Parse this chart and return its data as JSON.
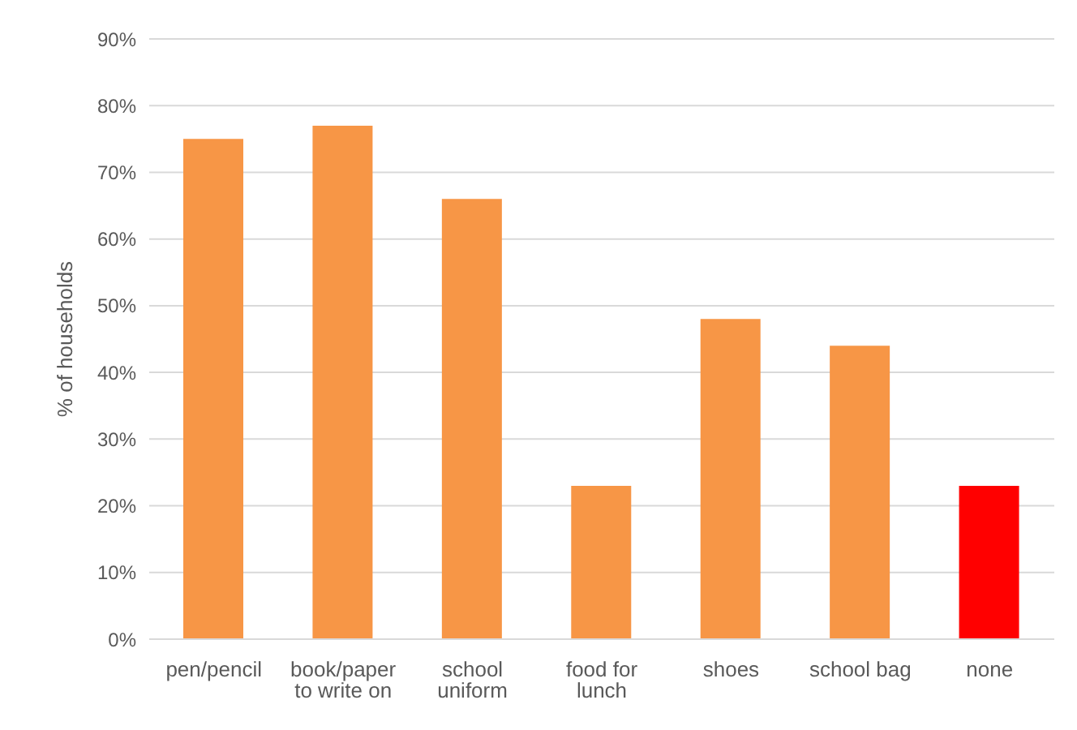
{
  "chart_data": {
    "type": "bar",
    "ylabel": "% of households",
    "categories": [
      "pen/pencil",
      "book/paper to write on",
      "school uniform",
      "food for lunch",
      "shoes",
      "school bag",
      "none"
    ],
    "values": [
      75,
      77,
      66,
      23,
      48,
      44,
      23
    ],
    "colors": [
      "#f79646",
      "#f79646",
      "#f79646",
      "#f79646",
      "#f79646",
      "#f79646",
      "#ff0000"
    ],
    "ylim": [
      0,
      90
    ],
    "yticks": [
      {
        "value": 0,
        "label": "0%"
      },
      {
        "value": 10,
        "label": "10%"
      },
      {
        "value": 20,
        "label": "20%"
      },
      {
        "value": 30,
        "label": "30%"
      },
      {
        "value": 40,
        "label": "40%"
      },
      {
        "value": 50,
        "label": "50%"
      },
      {
        "value": 60,
        "label": "60%"
      },
      {
        "value": 70,
        "label": "70%"
      },
      {
        "value": 80,
        "label": "80%"
      },
      {
        "value": 90,
        "label": "90%"
      }
    ],
    "grid": "y",
    "legend": false
  }
}
